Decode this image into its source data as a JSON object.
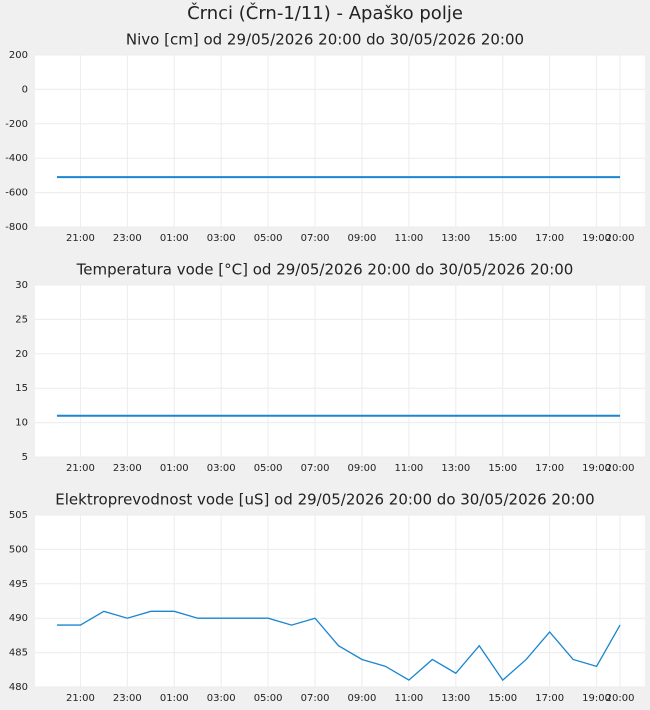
{
  "title": "Črnci (Črn-1/11) - Apaško polje",
  "chart_data": [
    {
      "type": "line",
      "title": "Nivo [cm] od 29/05/2026 20:00 do 30/05/2026 20:00",
      "categories": [
        null,
        "21:00",
        null,
        "23:00",
        null,
        "01:00",
        null,
        "03:00",
        null,
        "05:00",
        null,
        "07:00",
        null,
        "09:00",
        null,
        "11:00",
        null,
        "13:00",
        null,
        "15:00",
        null,
        "17:00",
        null,
        "19:00",
        "20:00"
      ],
      "values": [
        -510,
        -510,
        -510,
        -510,
        -510,
        -510,
        -510,
        -510,
        -510,
        -510,
        -510,
        -510,
        -510,
        -510,
        -510,
        -510,
        -510,
        -510,
        -510,
        -510,
        -510,
        -510,
        -510,
        -510,
        -510
      ],
      "color": "#1a86d0",
      "ylim": [
        -800,
        200
      ],
      "yticks": [
        -800,
        -600,
        -400,
        -200,
        0,
        200
      ],
      "grid": true
    },
    {
      "type": "line",
      "title": "Temperatura vode [°C] od 29/05/2026 20:00 do 30/05/2026 20:00",
      "categories": [
        null,
        "21:00",
        null,
        "23:00",
        null,
        "01:00",
        null,
        "03:00",
        null,
        "05:00",
        null,
        "07:00",
        null,
        "09:00",
        null,
        "11:00",
        null,
        "13:00",
        null,
        "15:00",
        null,
        "17:00",
        null,
        "19:00",
        "20:00"
      ],
      "values": [
        11,
        11,
        11,
        11,
        11,
        11,
        11,
        11,
        11,
        11,
        11,
        11,
        11,
        11,
        11,
        11,
        11,
        11,
        11,
        11,
        11,
        11,
        11,
        11,
        11
      ],
      "color": "#1a86d0",
      "ylim": [
        5,
        30
      ],
      "yticks": [
        5,
        10,
        15,
        20,
        25,
        30
      ],
      "grid": true
    },
    {
      "type": "line",
      "title": "Elektroprevodnost vode [uS] od 29/05/2026 20:00 do 30/05/2026 20:00",
      "categories": [
        null,
        "21:00",
        null,
        "23:00",
        null,
        "01:00",
        null,
        "03:00",
        null,
        "05:00",
        null,
        "07:00",
        null,
        "09:00",
        null,
        "11:00",
        null,
        "13:00",
        null,
        "15:00",
        null,
        "17:00",
        null,
        "19:00",
        "20:00"
      ],
      "values": [
        489,
        489,
        491,
        490,
        491,
        491,
        490,
        490,
        490,
        490,
        489,
        490,
        486,
        484,
        483,
        481,
        484,
        482,
        486,
        481,
        484,
        488,
        484,
        483,
        489
      ],
      "color": "#1a86d0",
      "ylim": [
        480,
        505
      ],
      "yticks": [
        480,
        485,
        490,
        495,
        500,
        505
      ],
      "grid": true
    }
  ]
}
